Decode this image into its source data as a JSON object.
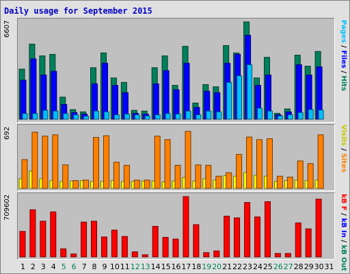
{
  "title": "Daily usage for September 2015",
  "colors": {
    "hits": "#00805c",
    "files": "#0000ff",
    "pages": "#00c0ff",
    "visits": "#ffff00",
    "sites": "#ff8000",
    "kbf": "#ff0000",
    "kbin": "#0000ff",
    "kbout": "#00805c",
    "weekend": "#00805c",
    "weekday": "#000000"
  },
  "panels": {
    "top": {
      "max_label": "6607",
      "legend": [
        {
          "text": "Pages",
          "color": "#00c0ff"
        },
        {
          "text": " / ",
          "color": "#000000"
        },
        {
          "text": "Files",
          "color": "#0000ff"
        },
        {
          "text": " / ",
          "color": "#000000"
        },
        {
          "text": "Hits",
          "color": "#00805c"
        }
      ]
    },
    "mid": {
      "max_label": "692",
      "legend": [
        {
          "text": "Visits",
          "color": "#c8c800"
        },
        {
          "text": " / ",
          "color": "#000000"
        },
        {
          "text": "Sites",
          "color": "#ff8000"
        }
      ]
    },
    "bot": {
      "max_label": "709602",
      "legend": [
        {
          "text": "kB F",
          "color": "#ff0000"
        },
        {
          "text": " / ",
          "color": "#000000"
        },
        {
          "text": "kB In",
          "color": "#0000ff"
        },
        {
          "text": " / ",
          "color": "#000000"
        },
        {
          "text": "kB Out",
          "color": "#00805c"
        }
      ]
    }
  },
  "chart_data": {
    "type": "bar",
    "days": [
      "1",
      "2",
      "3",
      "4",
      "5",
      "6",
      "7",
      "8",
      "9",
      "10",
      "11",
      "12",
      "13",
      "14",
      "15",
      "16",
      "17",
      "18",
      "19",
      "20",
      "21",
      "22",
      "23",
      "24",
      "25",
      "26",
      "27",
      "28",
      "29",
      "30",
      "31"
    ],
    "weekend_days": [
      "5",
      "6",
      "12",
      "13",
      "19",
      "20",
      "26",
      "27"
    ],
    "series_top": [
      {
        "name": "Hits",
        "max": 6607,
        "values": [
          3400,
          5100,
          4300,
          4400,
          1500,
          650,
          500,
          3500,
          4500,
          2800,
          2500,
          600,
          550,
          3500,
          4300,
          2300,
          4950,
          1100,
          2350,
          2200,
          5000,
          4500,
          6607,
          2800,
          4200,
          400,
          700,
          4350,
          3600,
          4600,
          0
        ]
      },
      {
        "name": "Files",
        "max": 6607,
        "values": [
          2650,
          4100,
          3000,
          3250,
          1000,
          450,
          350,
          2400,
          3800,
          2300,
          1800,
          400,
          350,
          2400,
          3300,
          2000,
          3800,
          800,
          1900,
          1800,
          3800,
          4400,
          5700,
          2300,
          3000,
          300,
          500,
          3700,
          3000,
          3550,
          0
        ]
      },
      {
        "name": "Pages",
        "max": 6607,
        "values": [
          380,
          380,
          600,
          550,
          380,
          300,
          200,
          550,
          500,
          300,
          350,
          300,
          220,
          300,
          380,
          350,
          550,
          300,
          550,
          500,
          2500,
          2950,
          3700,
          750,
          550,
          220,
          300,
          450,
          650,
          620,
          0
        ]
      }
    ],
    "series_mid": [
      {
        "name": "Sites",
        "max": 692,
        "values": [
          330,
          645,
          600,
          615,
          270,
          90,
          95,
          585,
          605,
          300,
          265,
          95,
          95,
          600,
          560,
          265,
          655,
          270,
          265,
          140,
          180,
          390,
          590,
          560,
          570,
          140,
          130,
          315,
          285,
          615,
          0
        ]
      },
      {
        "name": "Visits",
        "max": 692,
        "values": [
          110,
          200,
          110,
          90,
          80,
          85,
          90,
          80,
          80,
          90,
          80,
          80,
          85,
          85,
          75,
          85,
          125,
          85,
          110,
          95,
          145,
          140,
          180,
          150,
          140,
          80,
          90,
          95,
          90,
          95,
          0
        ]
      }
    ],
    "series_bot": [
      {
        "name": "kB F",
        "max": 709602,
        "values": [
          300000,
          555000,
          420000,
          530000,
          95000,
          35000,
          410000,
          420000,
          235000,
          315000,
          240000,
          60000,
          25000,
          360000,
          230000,
          210000,
          709602,
          380000,
          50000,
          70000,
          480000,
          460000,
          640000,
          470000,
          650000,
          40000,
          40000,
          400000,
          330000,
          680000,
          0
        ]
      }
    ]
  }
}
